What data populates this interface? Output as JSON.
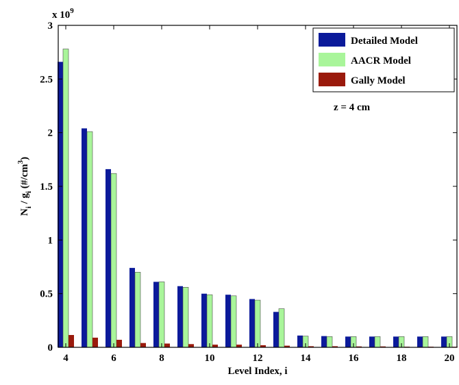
{
  "chart_data": {
    "type": "bar",
    "categories": [
      "4",
      "5",
      "6",
      "7",
      "8",
      "9",
      "10",
      "11",
      "12",
      "13",
      "14",
      "15",
      "16",
      "17",
      "18",
      "19",
      "20"
    ],
    "series": [
      {
        "name": "Detailed Model",
        "color": "#0b1a9a",
        "values": [
          2.66,
          2.04,
          1.66,
          0.74,
          0.61,
          0.57,
          0.5,
          0.49,
          0.45,
          0.33,
          0.11,
          0.105,
          0.1,
          0.1,
          0.1,
          0.1,
          0.1
        ]
      },
      {
        "name": "AACR Model",
        "color": "#a9f59a",
        "values": [
          2.78,
          2.01,
          1.62,
          0.7,
          0.61,
          0.56,
          0.49,
          0.48,
          0.44,
          0.36,
          0.105,
          0.1,
          0.1,
          0.1,
          0.1,
          0.1,
          0.1
        ]
      },
      {
        "name": "Gally Model",
        "color": "#9a1a0c",
        "values": [
          0.115,
          0.09,
          0.07,
          0.04,
          0.035,
          0.03,
          0.025,
          0.025,
          0.02,
          0.015,
          0.01,
          0.01,
          0.008,
          0.008,
          0.006,
          0.006,
          0.005
        ]
      }
    ],
    "xlabel": "Level Index, i",
    "ylabel_parts": {
      "n": "N",
      "n_sub": "i",
      "slash": " / g",
      "g_sub": "i",
      "unit": " (#/cm",
      "unit_sup": "3",
      "close": ")"
    },
    "yscale_label": {
      "base": "x 10",
      "exp": "9"
    },
    "ylim": [
      0,
      3
    ],
    "yticks": [
      "0",
      "0.5",
      "1",
      "1.5",
      "2",
      "2.5",
      "3"
    ],
    "xticks": [
      "4",
      "6",
      "8",
      "10",
      "12",
      "14",
      "16",
      "18",
      "20"
    ],
    "annotation": "z = 4 cm",
    "legend_position": "top-right",
    "grid": false
  }
}
